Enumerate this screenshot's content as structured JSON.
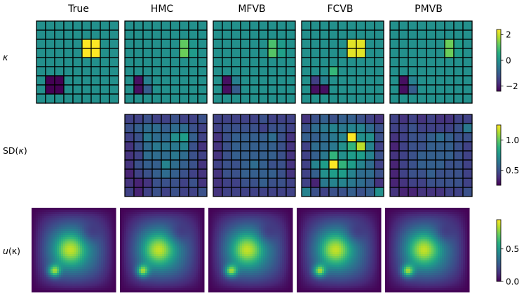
{
  "chart_data": {
    "type": "heatmap",
    "columns": [
      "True",
      "HMC",
      "MFVB",
      "FCVB",
      "PMVB"
    ],
    "rows": [
      {
        "label_prefix": "",
        "label_var": "κ",
        "label_suffix": "",
        "kind": "grid",
        "colorbar": {
          "min": -2.4,
          "max": 2.4,
          "ticks": [
            2,
            0,
            -2
          ],
          "tick_labels": [
            "2",
            "0",
            "−2"
          ]
        },
        "panels": [
          [
            [
              0,
              0,
              0,
              0,
              0,
              0,
              0,
              0,
              0
            ],
            [
              0,
              0,
              0,
              0,
              0,
              0,
              0,
              0,
              0
            ],
            [
              0,
              0,
              0,
              0,
              0,
              2.4,
              2.4,
              0,
              0
            ],
            [
              0,
              0,
              0,
              0,
              0,
              2.4,
              2.4,
              0,
              0
            ],
            [
              0,
              0,
              0,
              0,
              0,
              0,
              0,
              0,
              0
            ],
            [
              0,
              0,
              0,
              0,
              0,
              0,
              0,
              0,
              0
            ],
            [
              0,
              -2.4,
              -2.4,
              0,
              0,
              0,
              0,
              0,
              0
            ],
            [
              0,
              -2.4,
              -2.4,
              0,
              0,
              0,
              0,
              0,
              0
            ],
            [
              0,
              0,
              0,
              0,
              0,
              0,
              0,
              0,
              0
            ]
          ],
          [
            [
              0,
              0,
              0,
              0,
              0,
              0,
              0,
              0,
              0
            ],
            [
              0,
              0,
              0,
              0,
              0,
              0,
              0,
              0,
              0
            ],
            [
              0,
              0,
              0,
              0,
              0,
              0,
              1.2,
              0.1,
              0
            ],
            [
              0,
              0,
              0,
              0,
              0,
              0,
              1.3,
              0.2,
              0
            ],
            [
              0,
              0,
              0,
              0,
              0,
              0,
              0,
              0,
              0
            ],
            [
              0,
              0,
              0,
              0,
              0,
              0,
              0,
              0,
              0
            ],
            [
              0,
              -2.2,
              -0.3,
              0,
              0,
              0,
              0,
              0,
              0
            ],
            [
              0,
              -2.2,
              -1.0,
              0,
              0,
              0,
              0,
              0,
              0
            ],
            [
              0,
              0,
              0,
              0,
              0,
              0,
              0,
              0,
              0
            ]
          ],
          [
            [
              0,
              0,
              0,
              0,
              0,
              0,
              0,
              0,
              0
            ],
            [
              0,
              0,
              0,
              0,
              0,
              0,
              0,
              0,
              0
            ],
            [
              0,
              0,
              0,
              0,
              0,
              0,
              1.0,
              0.2,
              0
            ],
            [
              0,
              0,
              0,
              0,
              0,
              0,
              1.1,
              0.3,
              0
            ],
            [
              0,
              0,
              0,
              0,
              0,
              0,
              0,
              0,
              0
            ],
            [
              0,
              0,
              0,
              0,
              0,
              0,
              0,
              0,
              0
            ],
            [
              0,
              -2.2,
              -0.3,
              0,
              0,
              0,
              0,
              0,
              0
            ],
            [
              0,
              -2.2,
              -1.0,
              0,
              0,
              0,
              0,
              0,
              0
            ],
            [
              0,
              0,
              0,
              0,
              0,
              0,
              0,
              0,
              0
            ]
          ],
          [
            [
              0,
              0,
              0,
              0,
              0,
              0,
              0,
              0,
              0
            ],
            [
              0,
              0,
              0,
              0,
              0,
              0,
              0,
              0,
              0
            ],
            [
              0,
              0,
              0,
              0,
              0,
              2.2,
              2.2,
              0,
              0
            ],
            [
              0,
              0,
              0,
              0,
              0,
              2.2,
              2.2,
              0,
              0
            ],
            [
              0,
              0,
              0,
              0,
              0,
              0,
              0,
              0,
              0
            ],
            [
              0,
              0,
              0,
              0.8,
              0,
              0,
              0,
              0,
              0
            ],
            [
              0,
              -1.5,
              -0.3,
              0,
              0,
              0,
              0,
              0,
              0
            ],
            [
              0,
              -2.2,
              -2.2,
              0,
              0,
              0,
              0,
              0,
              0
            ],
            [
              0,
              0,
              0,
              0,
              0,
              0,
              0,
              0,
              0
            ]
          ],
          [
            [
              0,
              0,
              0,
              0,
              0,
              0,
              0,
              0,
              0
            ],
            [
              0,
              0,
              0,
              0,
              0,
              0,
              0,
              0,
              0
            ],
            [
              0,
              0,
              0,
              0,
              0,
              0,
              1.3,
              0.2,
              0
            ],
            [
              0,
              0,
              0,
              0,
              0,
              0,
              1.3,
              0.2,
              0
            ],
            [
              0,
              0,
              0,
              0,
              0,
              0,
              0,
              0,
              0
            ],
            [
              0,
              0,
              0,
              0,
              0,
              0,
              0,
              0,
              0
            ],
            [
              0,
              -2.2,
              -0.3,
              0,
              0,
              0,
              0,
              0,
              0
            ],
            [
              0,
              -2.2,
              -1.0,
              0,
              0,
              0,
              0,
              0,
              0
            ],
            [
              0,
              0,
              0,
              0,
              0,
              0,
              0,
              0,
              0
            ]
          ]
        ]
      },
      {
        "label_prefix": "SD(",
        "label_var": "κ",
        "label_suffix": ")",
        "kind": "grid",
        "colorbar": {
          "min": 0.25,
          "max": 1.25,
          "ticks": [
            1.0,
            0.5
          ],
          "tick_labels": [
            "1.0",
            "0.5"
          ]
        },
        "panels": [
          null,
          [
            [
              0.45,
              0.45,
              0.5,
              0.45,
              0.45,
              0.5,
              0.45,
              0.45,
              0.5
            ],
            [
              0.5,
              0.55,
              0.6,
              0.6,
              0.55,
              0.6,
              0.6,
              0.5,
              0.45
            ],
            [
              0.45,
              0.5,
              0.65,
              0.6,
              0.6,
              0.75,
              0.8,
              0.55,
              0.45
            ],
            [
              0.4,
              0.5,
              0.6,
              0.65,
              0.65,
              0.65,
              0.7,
              0.5,
              0.4
            ],
            [
              0.4,
              0.45,
              0.6,
              0.6,
              0.6,
              0.65,
              0.6,
              0.5,
              0.45
            ],
            [
              0.4,
              0.5,
              0.55,
              0.55,
              0.7,
              0.6,
              0.55,
              0.5,
              0.4
            ],
            [
              0.35,
              0.45,
              0.5,
              0.55,
              0.6,
              0.55,
              0.5,
              0.45,
              0.4
            ],
            [
              0.4,
              0.35,
              0.4,
              0.5,
              0.5,
              0.5,
              0.45,
              0.5,
              0.4
            ],
            [
              0.45,
              0.35,
              0.45,
              0.5,
              0.45,
              0.5,
              0.45,
              0.45,
              0.5
            ]
          ],
          [
            [
              0.45,
              0.45,
              0.45,
              0.45,
              0.45,
              0.5,
              0.45,
              0.45,
              0.45
            ],
            [
              0.45,
              0.5,
              0.5,
              0.5,
              0.5,
              0.45,
              0.5,
              0.5,
              0.45
            ],
            [
              0.4,
              0.5,
              0.55,
              0.55,
              0.55,
              0.55,
              0.6,
              0.5,
              0.4
            ],
            [
              0.4,
              0.5,
              0.55,
              0.55,
              0.55,
              0.55,
              0.55,
              0.5,
              0.4
            ],
            [
              0.4,
              0.5,
              0.55,
              0.55,
              0.55,
              0.55,
              0.55,
              0.5,
              0.4
            ],
            [
              0.45,
              0.5,
              0.5,
              0.55,
              0.6,
              0.55,
              0.5,
              0.5,
              0.4
            ],
            [
              0.4,
              0.5,
              0.5,
              0.55,
              0.55,
              0.55,
              0.55,
              0.5,
              0.4
            ],
            [
              0.4,
              0.45,
              0.45,
              0.5,
              0.5,
              0.55,
              0.5,
              0.5,
              0.45
            ],
            [
              0.4,
              0.45,
              0.45,
              0.45,
              0.45,
              0.45,
              0.45,
              0.45,
              0.45
            ]
          ],
          [
            [
              0.4,
              0.5,
              0.55,
              0.5,
              0.55,
              0.55,
              0.5,
              0.45,
              0.4
            ],
            [
              0.5,
              0.6,
              0.65,
              0.7,
              0.65,
              0.7,
              0.7,
              0.6,
              0.5
            ],
            [
              0.55,
              0.55,
              0.6,
              0.65,
              0.7,
              1.25,
              0.75,
              0.75,
              0.5
            ],
            [
              0.45,
              0.6,
              0.6,
              0.65,
              0.75,
              0.9,
              1.15,
              0.7,
              0.45
            ],
            [
              0.45,
              0.55,
              0.65,
              0.9,
              0.75,
              0.8,
              0.8,
              0.7,
              0.5
            ],
            [
              0.45,
              0.7,
              0.8,
              1.25,
              0.9,
              0.8,
              0.7,
              0.6,
              0.45
            ],
            [
              0.45,
              0.55,
              0.75,
              0.8,
              0.8,
              0.7,
              0.6,
              0.6,
              0.5
            ],
            [
              0.45,
              0.35,
              0.65,
              0.7,
              0.7,
              0.65,
              0.6,
              0.55,
              0.4
            ],
            [
              0.7,
              0.5,
              0.45,
              0.5,
              0.5,
              0.55,
              0.5,
              0.55,
              0.75
            ]
          ],
          [
            [
              0.45,
              0.4,
              0.45,
              0.4,
              0.45,
              0.4,
              0.4,
              0.45,
              0.45
            ],
            [
              0.45,
              0.45,
              0.5,
              0.45,
              0.45,
              0.45,
              0.45,
              0.5,
              0.65
            ],
            [
              0.4,
              0.45,
              0.5,
              0.5,
              0.55,
              0.6,
              0.55,
              0.5,
              0.5
            ],
            [
              0.35,
              0.45,
              0.5,
              0.5,
              0.55,
              0.55,
              0.55,
              0.5,
              0.45
            ],
            [
              0.4,
              0.45,
              0.5,
              0.55,
              0.55,
              0.55,
              0.55,
              0.5,
              0.45
            ],
            [
              0.35,
              0.45,
              0.5,
              0.55,
              0.55,
              0.55,
              0.5,
              0.5,
              0.45
            ],
            [
              0.35,
              0.45,
              0.5,
              0.5,
              0.55,
              0.5,
              0.5,
              0.5,
              0.45
            ],
            [
              0.35,
              0.4,
              0.45,
              0.45,
              0.5,
              0.5,
              0.5,
              0.5,
              0.45
            ],
            [
              0.4,
              0.35,
              0.35,
              0.4,
              0.4,
              0.4,
              0.45,
              0.45,
              0.5
            ]
          ]
        ]
      },
      {
        "label_prefix": "",
        "label_var": "u",
        "label_suffix": "(κ)",
        "kind": "field",
        "colorbar": {
          "min": 0.0,
          "max": 0.95,
          "ticks": [
            0.5,
            0.0
          ],
          "tick_labels": [
            "0.5",
            "0.0"
          ]
        },
        "panels": [
          "field",
          "field",
          "field",
          "field",
          "field"
        ]
      }
    ]
  }
}
